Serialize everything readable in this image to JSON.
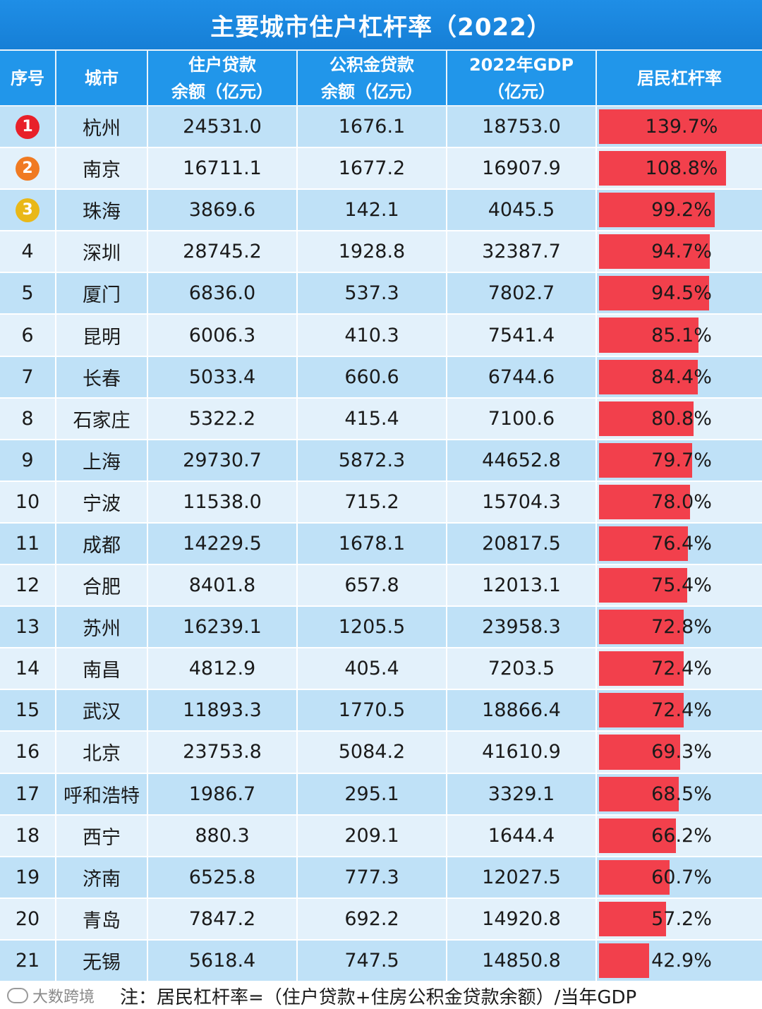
{
  "title": "主要城市住户杠杆率（2022）",
  "headers": {
    "rank": "序号",
    "city": "城市",
    "loan_line1": "住户贷款",
    "loan_line2": "余额（亿元）",
    "fund_line1": "公积金贷款",
    "fund_line2": "余额（亿元）",
    "gdp_line1": "2022年GDP",
    "gdp_line2": "（亿元）",
    "ratio": "居民杠杆率"
  },
  "colors": {
    "header_blue": "#2196ea",
    "bar_red": "#f2404c",
    "rank1": "#e8202a",
    "rank2": "#f07a22",
    "rank3": "#e9b818"
  },
  "chart_data": {
    "type": "table",
    "ratio_max": 139.7,
    "rows": [
      {
        "rank": "1",
        "city": "杭州",
        "loan": "24531.0",
        "fund": "1676.1",
        "gdp": "18753.0",
        "ratio": 139.7,
        "ratio_label": "139.7%"
      },
      {
        "rank": "2",
        "city": "南京",
        "loan": "16711.1",
        "fund": "1677.2",
        "gdp": "16907.9",
        "ratio": 108.8,
        "ratio_label": "108.8%"
      },
      {
        "rank": "3",
        "city": "珠海",
        "loan": "3869.6",
        "fund": "142.1",
        "gdp": "4045.5",
        "ratio": 99.2,
        "ratio_label": "99.2%"
      },
      {
        "rank": "4",
        "city": "深圳",
        "loan": "28745.2",
        "fund": "1928.8",
        "gdp": "32387.7",
        "ratio": 94.7,
        "ratio_label": "94.7%"
      },
      {
        "rank": "5",
        "city": "厦门",
        "loan": "6836.0",
        "fund": "537.3",
        "gdp": "7802.7",
        "ratio": 94.5,
        "ratio_label": "94.5%"
      },
      {
        "rank": "6",
        "city": "昆明",
        "loan": "6006.3",
        "fund": "410.3",
        "gdp": "7541.4",
        "ratio": 85.1,
        "ratio_label": "85.1%"
      },
      {
        "rank": "7",
        "city": "长春",
        "loan": "5033.4",
        "fund": "660.6",
        "gdp": "6744.6",
        "ratio": 84.4,
        "ratio_label": "84.4%"
      },
      {
        "rank": "8",
        "city": "石家庄",
        "loan": "5322.2",
        "fund": "415.4",
        "gdp": "7100.6",
        "ratio": 80.8,
        "ratio_label": "80.8%"
      },
      {
        "rank": "9",
        "city": "上海",
        "loan": "29730.7",
        "fund": "5872.3",
        "gdp": "44652.8",
        "ratio": 79.7,
        "ratio_label": "79.7%"
      },
      {
        "rank": "10",
        "city": "宁波",
        "loan": "11538.0",
        "fund": "715.2",
        "gdp": "15704.3",
        "ratio": 78.0,
        "ratio_label": "78.0%"
      },
      {
        "rank": "11",
        "city": "成都",
        "loan": "14229.5",
        "fund": "1678.1",
        "gdp": "20817.5",
        "ratio": 76.4,
        "ratio_label": "76.4%"
      },
      {
        "rank": "12",
        "city": "合肥",
        "loan": "8401.8",
        "fund": "657.8",
        "gdp": "12013.1",
        "ratio": 75.4,
        "ratio_label": "75.4%"
      },
      {
        "rank": "13",
        "city": "苏州",
        "loan": "16239.1",
        "fund": "1205.5",
        "gdp": "23958.3",
        "ratio": 72.8,
        "ratio_label": "72.8%"
      },
      {
        "rank": "14",
        "city": "南昌",
        "loan": "4812.9",
        "fund": "405.4",
        "gdp": "7203.5",
        "ratio": 72.4,
        "ratio_label": "72.4%"
      },
      {
        "rank": "15",
        "city": "武汉",
        "loan": "11893.3",
        "fund": "1770.5",
        "gdp": "18866.4",
        "ratio": 72.4,
        "ratio_label": "72.4%"
      },
      {
        "rank": "16",
        "city": "北京",
        "loan": "23753.8",
        "fund": "5084.2",
        "gdp": "41610.9",
        "ratio": 69.3,
        "ratio_label": "69.3%"
      },
      {
        "rank": "17",
        "city": "呼和浩特",
        "loan": "1986.7",
        "fund": "295.1",
        "gdp": "3329.1",
        "ratio": 68.5,
        "ratio_label": "68.5%"
      },
      {
        "rank": "18",
        "city": "西宁",
        "loan": "880.3",
        "fund": "209.1",
        "gdp": "1644.4",
        "ratio": 66.2,
        "ratio_label": "66.2%"
      },
      {
        "rank": "19",
        "city": "济南",
        "loan": "6525.8",
        "fund": "777.3",
        "gdp": "12027.5",
        "ratio": 60.7,
        "ratio_label": "60.7%"
      },
      {
        "rank": "20",
        "city": "青岛",
        "loan": "7847.2",
        "fund": "692.2",
        "gdp": "14920.8",
        "ratio": 57.2,
        "ratio_label": "57.2%"
      },
      {
        "rank": "21",
        "city": "无锡",
        "loan": "5618.4",
        "fund": "747.5",
        "gdp": "14850.8",
        "ratio": 42.9,
        "ratio_label": "42.9%"
      }
    ]
  },
  "footer": {
    "brand": "大数跨境",
    "brand_icon": "chat-bubble-icon",
    "note": "注：居民杠杆率=（住户贷款+住房公积金贷款余额）/当年GDP"
  }
}
